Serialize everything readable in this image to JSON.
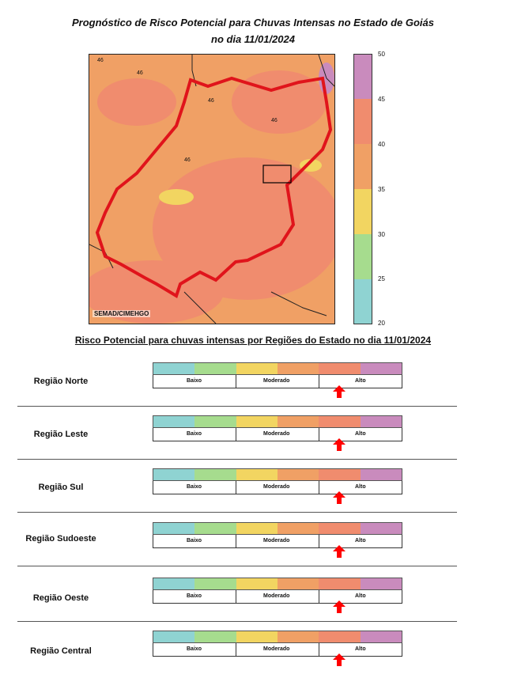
{
  "title_line1": "Prognóstico de Risco Potencial para Chuvas Intensas no Estado de Goiás",
  "title_line2": "no dia 11/01/2024",
  "map_credit": "SEMAD/CIMEHGO",
  "map_contour_label": "46",
  "colorbar": {
    "ticks": [
      "50",
      "45",
      "40",
      "35",
      "30",
      "25",
      "20"
    ],
    "colors": [
      "#c98bbd",
      "#f08c6e",
      "#f0a065",
      "#f2d561",
      "#a6dc8e",
      "#8fd3d2"
    ]
  },
  "section_title": "Risco Potencial para chuvas intensas por Regiões do Estado no dia 11/01/2024",
  "scale_colors": [
    "#8fd3d2",
    "#a6dc8e",
    "#f2d561",
    "#f0a065",
    "#f08c6e",
    "#c98bbd"
  ],
  "levels": {
    "low": "Baixo",
    "moderate": "Moderado",
    "high": "Alto"
  },
  "arrow_color": "#ff0000",
  "regions": [
    {
      "name": "Região Norte",
      "risk_level": "Alto"
    },
    {
      "name": "Região Leste",
      "risk_level": "Alto"
    },
    {
      "name": "Região Sul",
      "risk_level": "Alto"
    },
    {
      "name": "Região Sudoeste",
      "risk_level": "Alto"
    },
    {
      "name": "Região Oeste",
      "risk_level": "Alto"
    },
    {
      "name": "Região Central",
      "risk_level": "Alto"
    }
  ]
}
